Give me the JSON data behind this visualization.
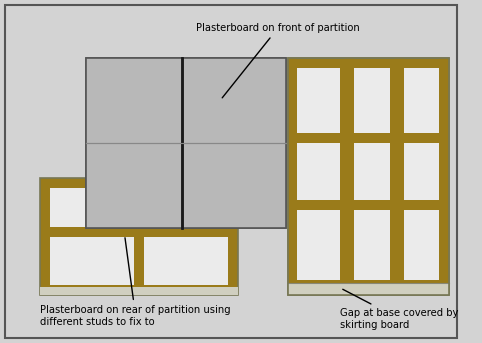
{
  "bg_color": "#d3d3d3",
  "stud_color": "#9a7b1a",
  "cell_color": "#ebebeb",
  "front_plaster_color": "#b8b8b8",
  "rear_plaster_color": "#c5c5c5",
  "skirting_color": "#d0cfc0",
  "border_color": "#555555",
  "annotation_front": "Plasterboard on front of partition",
  "annotation_rear": "Plasterboard on rear of partition using\ndifferent studs to fix to",
  "annotation_gap": "Gap at base covered by\nskirting board"
}
